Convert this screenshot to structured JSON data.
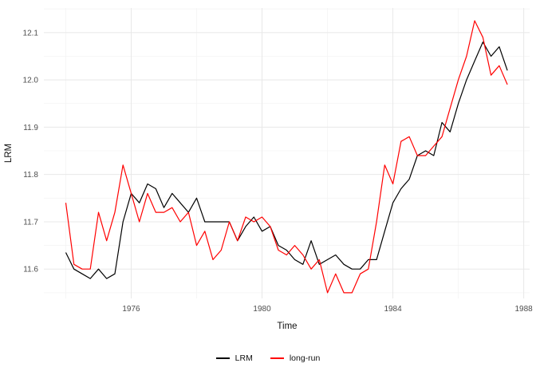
{
  "chart_data": {
    "type": "line",
    "title": "",
    "xlabel": "Time",
    "ylabel": "LRM",
    "grid": true,
    "legend_position": "bottom",
    "xlim": [
      1973.33,
      1988.18
    ],
    "ylim": [
      11.538,
      12.152
    ],
    "x_ticks": [
      1976,
      1980,
      1984,
      1988
    ],
    "x_tick_labels": [
      "1976",
      "1980",
      "1984",
      "1988"
    ],
    "y_ticks": [
      11.6,
      11.7,
      11.8,
      11.9,
      12.0,
      12.1
    ],
    "y_tick_labels": [
      "11.6",
      "11.7",
      "11.8",
      "11.9",
      "12.0",
      "12.1"
    ],
    "x_minor_ticks": [
      1974,
      1978,
      1982,
      1986
    ],
    "y_minor_ticks": [
      11.55,
      11.65,
      11.75,
      11.85,
      11.95,
      12.05,
      12.15
    ],
    "x": [
      1974,
      1974.25,
      1974.5,
      1974.75,
      1975,
      1975.25,
      1975.5,
      1975.75,
      1976,
      1976.25,
      1976.5,
      1976.75,
      1977,
      1977.25,
      1977.5,
      1977.75,
      1978,
      1978.25,
      1978.5,
      1978.75,
      1979,
      1979.25,
      1979.5,
      1979.75,
      1980,
      1980.25,
      1980.5,
      1980.75,
      1981,
      1981.25,
      1981.5,
      1981.75,
      1982,
      1982.25,
      1982.5,
      1982.75,
      1983,
      1983.25,
      1983.5,
      1983.75,
      1984,
      1984.25,
      1984.5,
      1984.75,
      1985,
      1985.25,
      1985.5,
      1985.75,
      1986,
      1986.25,
      1986.5,
      1986.75,
      1987,
      1987.25,
      1987.5
    ],
    "series": [
      {
        "name": "LRM",
        "color": "#000000",
        "values": [
          11.635,
          11.6,
          11.59,
          11.58,
          11.6,
          11.58,
          11.59,
          11.7,
          11.76,
          11.74,
          11.78,
          11.77,
          11.73,
          11.76,
          11.74,
          11.72,
          11.75,
          11.7,
          11.7,
          11.7,
          11.7,
          11.66,
          11.69,
          11.71,
          11.68,
          11.69,
          11.65,
          11.64,
          11.62,
          11.61,
          11.66,
          11.61,
          11.62,
          11.63,
          11.61,
          11.6,
          11.6,
          11.62,
          11.62,
          11.68,
          11.74,
          11.77,
          11.79,
          11.84,
          11.85,
          11.84,
          11.91,
          11.89,
          11.95,
          12.0,
          12.04,
          12.08,
          12.05,
          12.07,
          12.02
        ]
      },
      {
        "name": "long-run",
        "color": "#FF0000",
        "values": [
          11.74,
          11.61,
          11.6,
          11.6,
          11.72,
          11.66,
          11.72,
          11.82,
          11.76,
          11.7,
          11.76,
          11.72,
          11.72,
          11.73,
          11.7,
          11.72,
          11.65,
          11.68,
          11.62,
          11.64,
          11.7,
          11.66,
          11.71,
          11.7,
          11.71,
          11.69,
          11.64,
          11.63,
          11.65,
          11.63,
          11.6,
          11.62,
          11.55,
          11.59,
          11.55,
          11.55,
          11.59,
          11.6,
          11.7,
          11.82,
          11.78,
          11.87,
          11.88,
          11.84,
          11.84,
          11.86,
          11.88,
          11.94,
          12.0,
          12.05,
          12.125,
          12.09,
          12.01,
          12.03,
          11.99
        ]
      }
    ],
    "style": {
      "background": "#FFFFFF",
      "major_grid_color": "#E8E8E8",
      "minor_grid_color": "#F4F4F4",
      "tick_label_color": "#4d4d4d",
      "line_width": 1.2
    }
  }
}
